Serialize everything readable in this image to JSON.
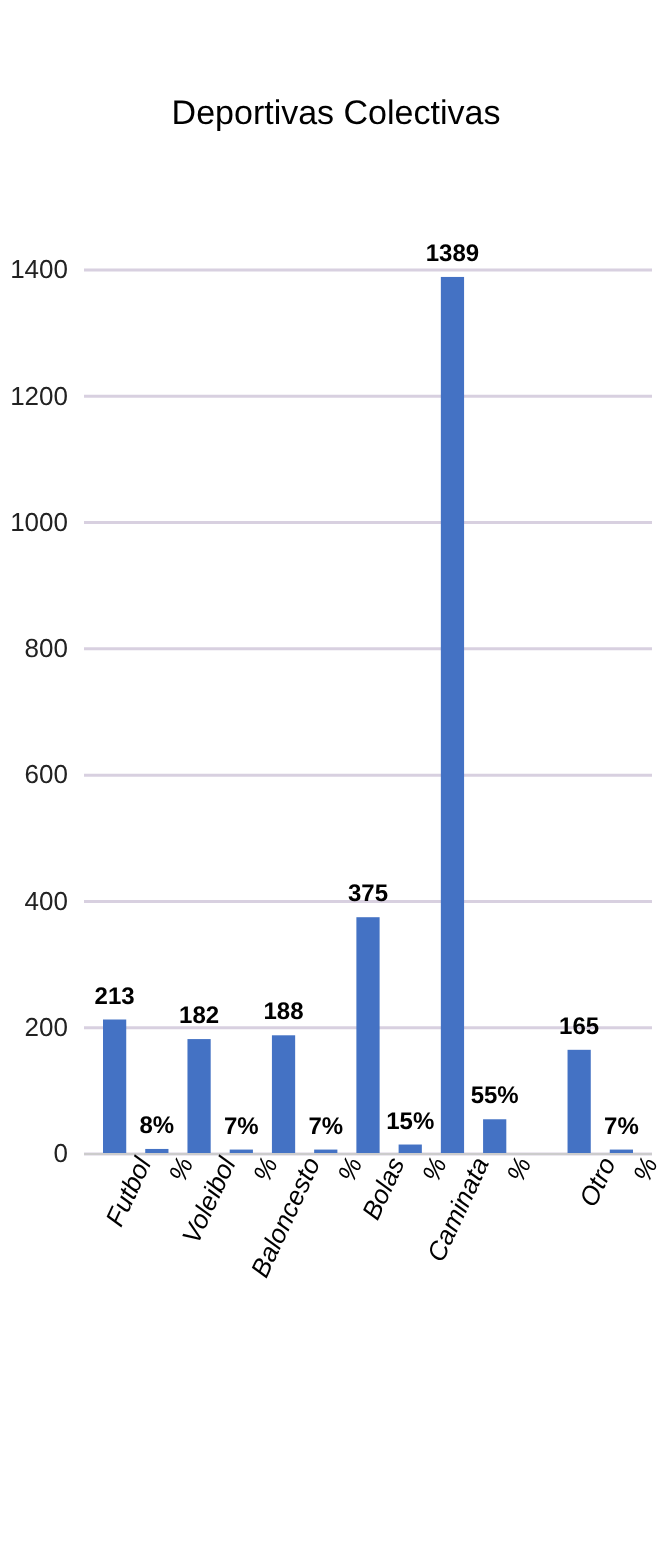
{
  "chart_data": {
    "type": "bar",
    "title": "Deportivas Colectivas",
    "categories": [
      "Futbol",
      "%",
      "Voleibol",
      "%",
      "Baloncesto",
      "%",
      "Bolas",
      "%",
      "Caminata",
      "%",
      null,
      "Otro",
      "%"
    ],
    "values": [
      213,
      8,
      182,
      7,
      188,
      7,
      375,
      15,
      1389,
      55,
      null,
      165,
      7
    ],
    "value_labels": [
      "213",
      "8%",
      "182",
      "7%",
      "188",
      "7%",
      "375",
      "15%",
      "1389",
      "55%",
      null,
      "165",
      "7%"
    ],
    "color": "#4472c4",
    "ylim": [
      0,
      1400
    ],
    "yticks": [
      0,
      200,
      400,
      600,
      800,
      1000,
      1200,
      1400
    ],
    "grid": "y"
  }
}
